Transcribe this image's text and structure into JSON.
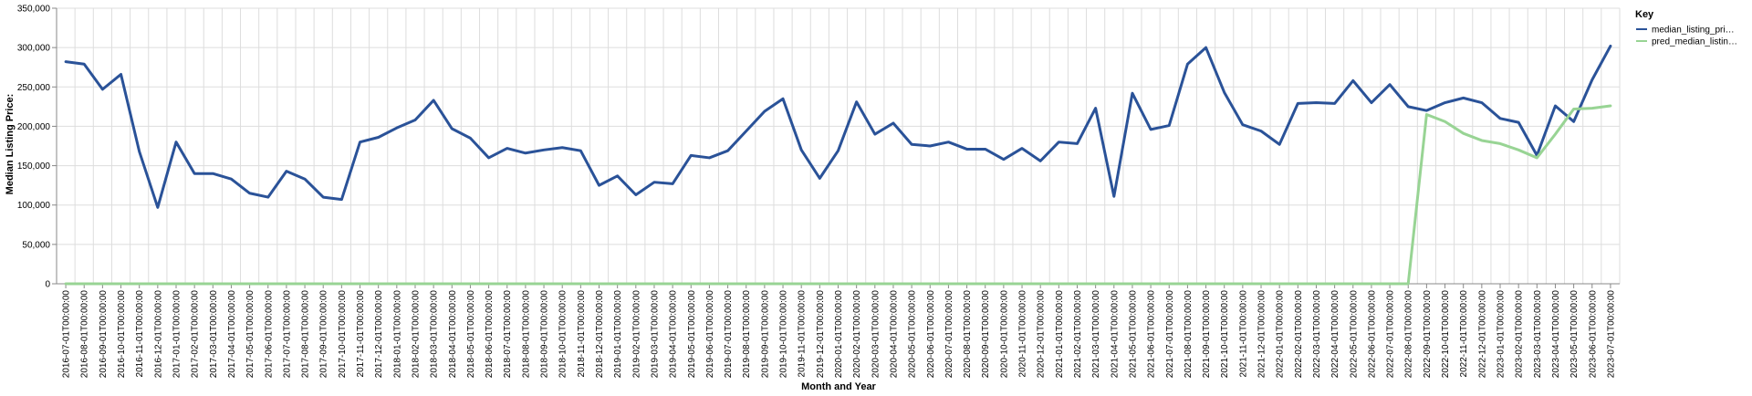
{
  "chart_data": {
    "type": "line",
    "xlabel": "Month and Year",
    "ylabel": "Median Listing Price:",
    "ylim": [
      0,
      350000
    ],
    "y_ticks": [
      0,
      50000,
      100000,
      150000,
      200000,
      250000,
      300000,
      350000
    ],
    "y_tick_labels": [
      "0",
      "50,000",
      "100,000",
      "150,000",
      "200,000",
      "250,000",
      "300,000",
      "350,000"
    ],
    "grid": true,
    "legend": {
      "title": "Key",
      "placement": "right",
      "entries": [
        "median_listing_pri…",
        "pred_median_listin…"
      ]
    },
    "x": [
      "2016-07-01T00:00:00",
      "2016-08-01T00:00:00",
      "2016-09-01T00:00:00",
      "2016-10-01T00:00:00",
      "2016-11-01T00:00:00",
      "2016-12-01T00:00:00",
      "2017-01-01T00:00:00",
      "2017-02-01T00:00:00",
      "2017-03-01T00:00:00",
      "2017-04-01T00:00:00",
      "2017-05-01T00:00:00",
      "2017-06-01T00:00:00",
      "2017-07-01T00:00:00",
      "2017-08-01T00:00:00",
      "2017-09-01T00:00:00",
      "2017-10-01T00:00:00",
      "2017-11-01T00:00:00",
      "2017-12-01T00:00:00",
      "2018-01-01T00:00:00",
      "2018-02-01T00:00:00",
      "2018-03-01T00:00:00",
      "2018-04-01T00:00:00",
      "2018-05-01T00:00:00",
      "2018-06-01T00:00:00",
      "2018-07-01T00:00:00",
      "2018-08-01T00:00:00",
      "2018-09-01T00:00:00",
      "2018-10-01T00:00:00",
      "2018-11-01T00:00:00",
      "2018-12-01T00:00:00",
      "2019-01-01T00:00:00",
      "2019-02-01T00:00:00",
      "2019-03-01T00:00:00",
      "2019-04-01T00:00:00",
      "2019-05-01T00:00:00",
      "2019-06-01T00:00:00",
      "2019-07-01T00:00:00",
      "2019-08-01T00:00:00",
      "2019-09-01T00:00:00",
      "2019-10-01T00:00:00",
      "2019-11-01T00:00:00",
      "2019-12-01T00:00:00",
      "2020-01-01T00:00:00",
      "2020-02-01T00:00:00",
      "2020-03-01T00:00:00",
      "2020-04-01T00:00:00",
      "2020-05-01T00:00:00",
      "2020-06-01T00:00:00",
      "2020-07-01T00:00:00",
      "2020-08-01T00:00:00",
      "2020-09-01T00:00:00",
      "2020-10-01T00:00:00",
      "2020-11-01T00:00:00",
      "2020-12-01T00:00:00",
      "2021-01-01T00:00:00",
      "2021-02-01T00:00:00",
      "2021-03-01T00:00:00",
      "2021-04-01T00:00:00",
      "2021-05-01T00:00:00",
      "2021-06-01T00:00:00",
      "2021-07-01T00:00:00",
      "2021-08-01T00:00:00",
      "2021-09-01T00:00:00",
      "2021-10-01T00:00:00",
      "2021-11-01T00:00:00",
      "2021-12-01T00:00:00",
      "2022-01-01T00:00:00",
      "2022-02-01T00:00:00",
      "2022-03-01T00:00:00",
      "2022-04-01T00:00:00",
      "2022-05-01T00:00:00",
      "2022-06-01T00:00:00",
      "2022-07-01T00:00:00",
      "2022-08-01T00:00:00",
      "2022-09-01T00:00:00",
      "2022-10-01T00:00:00",
      "2022-11-01T00:00:00",
      "2022-12-01T00:00:00",
      "2023-01-01T00:00:00",
      "2023-02-01T00:00:00",
      "2023-03-01T00:00:00",
      "2023-04-01T00:00:00",
      "2023-05-01T00:00:00",
      "2023-06-01T00:00:00",
      "2023-07-01T00:00:00"
    ],
    "series": [
      {
        "name": "median_listing_pri…",
        "color": "#2a5298",
        "values": [
          282000,
          279000,
          247000,
          266000,
          168000,
          97000,
          180000,
          140000,
          140000,
          133000,
          115000,
          110000,
          143000,
          133000,
          110000,
          107000,
          180000,
          186000,
          198000,
          208000,
          233000,
          197000,
          185000,
          160000,
          172000,
          166000,
          170000,
          173000,
          169000,
          125000,
          137000,
          113000,
          129000,
          127000,
          163000,
          160000,
          169000,
          194000,
          219000,
          235000,
          170000,
          134000,
          169000,
          231000,
          190000,
          204000,
          177000,
          175000,
          180000,
          171000,
          171000,
          158000,
          172000,
          156000,
          180000,
          178000,
          223000,
          111000,
          242000,
          196000,
          201000,
          279000,
          300000,
          243000,
          202000,
          194000,
          177000,
          229000,
          230000,
          229000,
          258000,
          230000,
          253000,
          225000,
          220000,
          230000,
          236000,
          230000,
          210000,
          205000,
          163000,
          226000,
          206000,
          259000,
          302000
        ]
      },
      {
        "name": "pred_median_listin…",
        "color": "#98d494",
        "values": [
          0,
          0,
          0,
          0,
          0,
          0,
          0,
          0,
          0,
          0,
          0,
          0,
          0,
          0,
          0,
          0,
          0,
          0,
          0,
          0,
          0,
          0,
          0,
          0,
          0,
          0,
          0,
          0,
          0,
          0,
          0,
          0,
          0,
          0,
          0,
          0,
          0,
          0,
          0,
          0,
          0,
          0,
          0,
          0,
          0,
          0,
          0,
          0,
          0,
          0,
          0,
          0,
          0,
          0,
          0,
          0,
          0,
          0,
          0,
          0,
          0,
          0,
          0,
          0,
          0,
          0,
          0,
          0,
          0,
          0,
          0,
          0,
          0,
          0,
          215000,
          206000,
          191000,
          182000,
          178000,
          170000,
          160000,
          190000,
          222000,
          223000,
          226000
        ]
      }
    ]
  }
}
